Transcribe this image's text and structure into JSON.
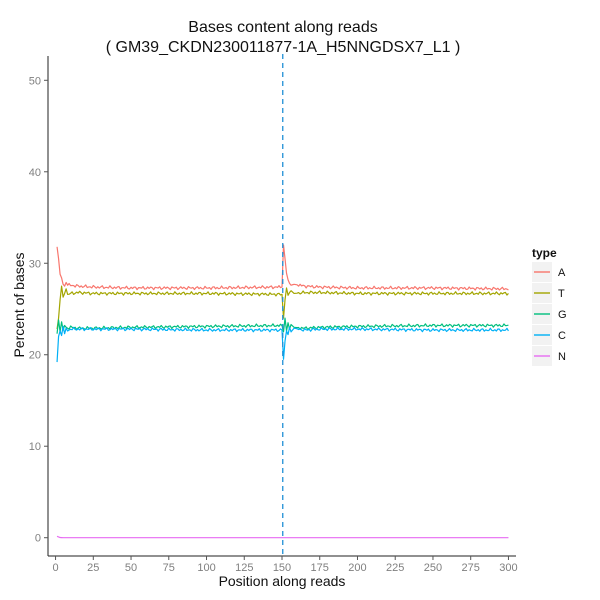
{
  "chart_data": {
    "type": "line",
    "title": "Bases content along reads",
    "subtitle": "( GM39_CKDN230011877-1A_H5NNGDSX7_L1 )",
    "xlabel": "Position along reads",
    "ylabel": "Percent of bases",
    "xlim": [
      -5,
      305
    ],
    "ylim": [
      -2,
      52
    ],
    "x_ticks": [
      0,
      25,
      50,
      75,
      100,
      125,
      150,
      175,
      200,
      225,
      250,
      275,
      300
    ],
    "y_ticks": [
      0,
      10,
      20,
      30,
      40,
      50
    ],
    "grid": false,
    "divider_x": 150.5,
    "legend": {
      "title": "type",
      "position": "right"
    },
    "series": [
      {
        "name": "A",
        "color": "#F8766D",
        "start": 31.8,
        "plateau": 27.3,
        "end": 27.2,
        "x": [
          1,
          2,
          3,
          4,
          5,
          6,
          7,
          8,
          10,
          15,
          25,
          50,
          100,
          150,
          151,
          152,
          153,
          154,
          155,
          156,
          158,
          165,
          175,
          200,
          250,
          300
        ],
        "values": [
          31.8,
          30.5,
          28.8,
          28.4,
          27.7,
          27.5,
          27.9,
          27.6,
          27.6,
          27.5,
          27.4,
          27.3,
          27.3,
          27.4,
          32.0,
          30.5,
          28.9,
          28.2,
          27.8,
          27.6,
          27.7,
          27.5,
          27.4,
          27.3,
          27.3,
          27.2
        ]
      },
      {
        "name": "T",
        "color": "#A3A500",
        "start": 22.8,
        "plateau": 26.7,
        "end": 26.7,
        "x": [
          1,
          2,
          3,
          4,
          5,
          6,
          7,
          8,
          10,
          15,
          25,
          50,
          100,
          150,
          151,
          152,
          153,
          154,
          155,
          156,
          158,
          165,
          175,
          200,
          250,
          300
        ],
        "values": [
          22.8,
          24.0,
          26.0,
          27.5,
          26.3,
          26.7,
          27.2,
          26.6,
          26.7,
          26.8,
          26.7,
          26.7,
          26.7,
          26.6,
          24.0,
          26.0,
          27.3,
          26.5,
          26.8,
          27.0,
          26.7,
          26.8,
          26.8,
          26.7,
          26.7,
          26.7
        ]
      },
      {
        "name": "G",
        "color": "#00BF7D",
        "start": 22.3,
        "plateau": 23.0,
        "end": 23.2,
        "x": [
          1,
          2,
          3,
          4,
          5,
          6,
          7,
          8,
          10,
          15,
          25,
          50,
          100,
          150,
          151,
          152,
          153,
          154,
          155,
          156,
          158,
          165,
          175,
          200,
          250,
          300
        ],
        "values": [
          22.3,
          23.8,
          22.5,
          23.6,
          22.7,
          23.2,
          23.0,
          22.9,
          23.0,
          22.9,
          22.9,
          23.0,
          23.1,
          23.2,
          22.5,
          24.0,
          22.6,
          23.5,
          22.8,
          23.3,
          23.0,
          22.9,
          23.0,
          23.1,
          23.2,
          23.2
        ]
      },
      {
        "name": "C",
        "color": "#00B0F6",
        "start": 19.2,
        "plateau": 22.8,
        "end": 22.7,
        "x": [
          1,
          2,
          3,
          4,
          5,
          6,
          7,
          8,
          10,
          15,
          25,
          50,
          100,
          150,
          151,
          152,
          153,
          154,
          155,
          156,
          158,
          165,
          175,
          200,
          250,
          300
        ],
        "values": [
          19.2,
          22.0,
          22.6,
          22.1,
          23.1,
          22.3,
          22.9,
          22.6,
          22.8,
          22.8,
          22.8,
          22.8,
          22.7,
          22.7,
          19.5,
          21.5,
          22.6,
          22.2,
          23.0,
          22.5,
          22.9,
          22.7,
          22.8,
          22.8,
          22.7,
          22.7
        ]
      },
      {
        "name": "N",
        "color": "#E76BF3",
        "start": 0.15,
        "plateau": 0.0,
        "end": 0.0,
        "x": [
          1,
          2,
          3,
          5,
          150,
          151,
          300
        ],
        "values": [
          0.15,
          0.08,
          0.02,
          0.0,
          0.0,
          0.0,
          0.0
        ]
      }
    ]
  }
}
